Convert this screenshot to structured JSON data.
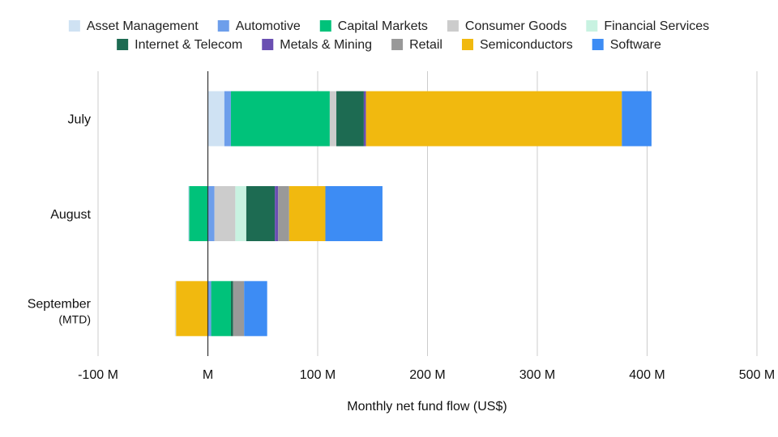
{
  "chart_data": {
    "type": "bar",
    "orientation": "horizontal",
    "stacked": true,
    "categories": [
      "July",
      "August",
      "September"
    ],
    "category_sublabels": [
      "",
      "",
      "(MTD)"
    ],
    "xlabel": "Monthly net fund flow (US$)",
    "ylabel": "",
    "xlim": [
      -100,
      500
    ],
    "xticks": [
      -100,
      0,
      100,
      200,
      300,
      400,
      500
    ],
    "xtick_labels": [
      "-100 M",
      "M",
      "100 M",
      "200 M",
      "300 M",
      "400 M",
      "500 M"
    ],
    "grid": true,
    "legend_position": "top",
    "series": [
      {
        "name": "Asset Management",
        "color": "#cfe2f3",
        "values": [
          15,
          0,
          0
        ]
      },
      {
        "name": "Automotive",
        "color": "#6d9eeb",
        "values": [
          6,
          6,
          3
        ]
      },
      {
        "name": "Capital Markets",
        "color": "#00c27a",
        "values": [
          90,
          -17,
          18
        ]
      },
      {
        "name": "Consumer Goods",
        "color": "#cccccc",
        "values": [
          6,
          19,
          0
        ]
      },
      {
        "name": "Financial Services",
        "color": "#c8f2e1",
        "values": [
          0,
          10,
          0
        ]
      },
      {
        "name": "Internet & Telecom",
        "color": "#1d6b52",
        "values": [
          25,
          26,
          2
        ]
      },
      {
        "name": "Metals & Mining",
        "color": "#6a4fb2",
        "values": [
          2,
          3,
          0
        ]
      },
      {
        "name": "Retail",
        "color": "#999999",
        "values": [
          0,
          10,
          10
        ]
      },
      {
        "name": "Semiconductors",
        "color": "#f1b90f",
        "values": [
          233,
          33,
          -29
        ]
      },
      {
        "name": "Software",
        "color": "#3d8cf4",
        "values": [
          27,
          52,
          21
        ]
      }
    ],
    "extra_negatives": [
      {
        "series": "Asset Management",
        "category": "August",
        "value": -1
      },
      {
        "series": "Asset Management",
        "category": "September",
        "value": -1
      },
      {
        "series": "Automotive",
        "category": "September",
        "value": 0
      }
    ]
  }
}
